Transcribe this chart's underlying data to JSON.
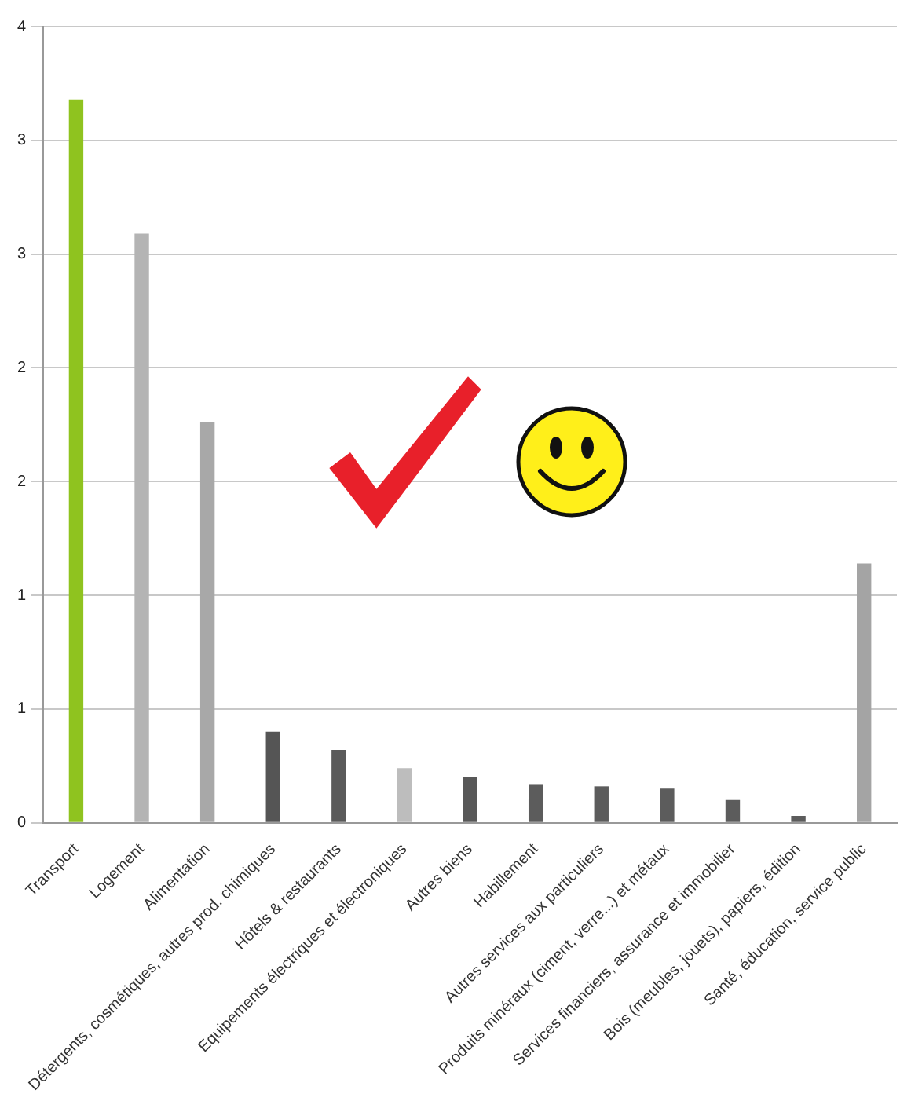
{
  "chart_data": {
    "type": "bar",
    "categories": [
      "Transport",
      "Logement",
      "Alimentation",
      "Détergents, cosmétiques, autres prod. chimiques",
      "Hôtels & restaurants",
      "Equipements électriques et électroniques",
      "Autres biens",
      "Habillement",
      "Autres services aux particuliers",
      "Produits minéraux (ciment, verre...) et métaux",
      "Services financiers, assurance et immobilier",
      "Bois (meubles, jouets), papiers, édition",
      "Santé, éducation, service public"
    ],
    "values": [
      3.18,
      2.59,
      1.76,
      0.4,
      0.32,
      0.24,
      0.2,
      0.17,
      0.16,
      0.15,
      0.1,
      0.03,
      1.14
    ],
    "colors": [
      "#8fc31f",
      "#b4b4b4",
      "#a8a8a8",
      "#555555",
      "#5a5a5a",
      "#bdbdbd",
      "#585858",
      "#5c5c5c",
      "#5c5c5c",
      "#5c5c5c",
      "#5c5c5c",
      "#5c5c5c",
      "#a4a4a4"
    ],
    "ylim": [
      0,
      3.5
    ],
    "yticks": [
      0,
      {
        "value": 0.5,
        "label": "1"
      },
      1,
      {
        "value": 1.5,
        "label": "2"
      },
      2,
      {
        "value": 2.5,
        "label": "3"
      },
      3,
      {
        "value": 3.5,
        "label": "4"
      }
    ],
    "grid": "y",
    "legend": false
  }
}
